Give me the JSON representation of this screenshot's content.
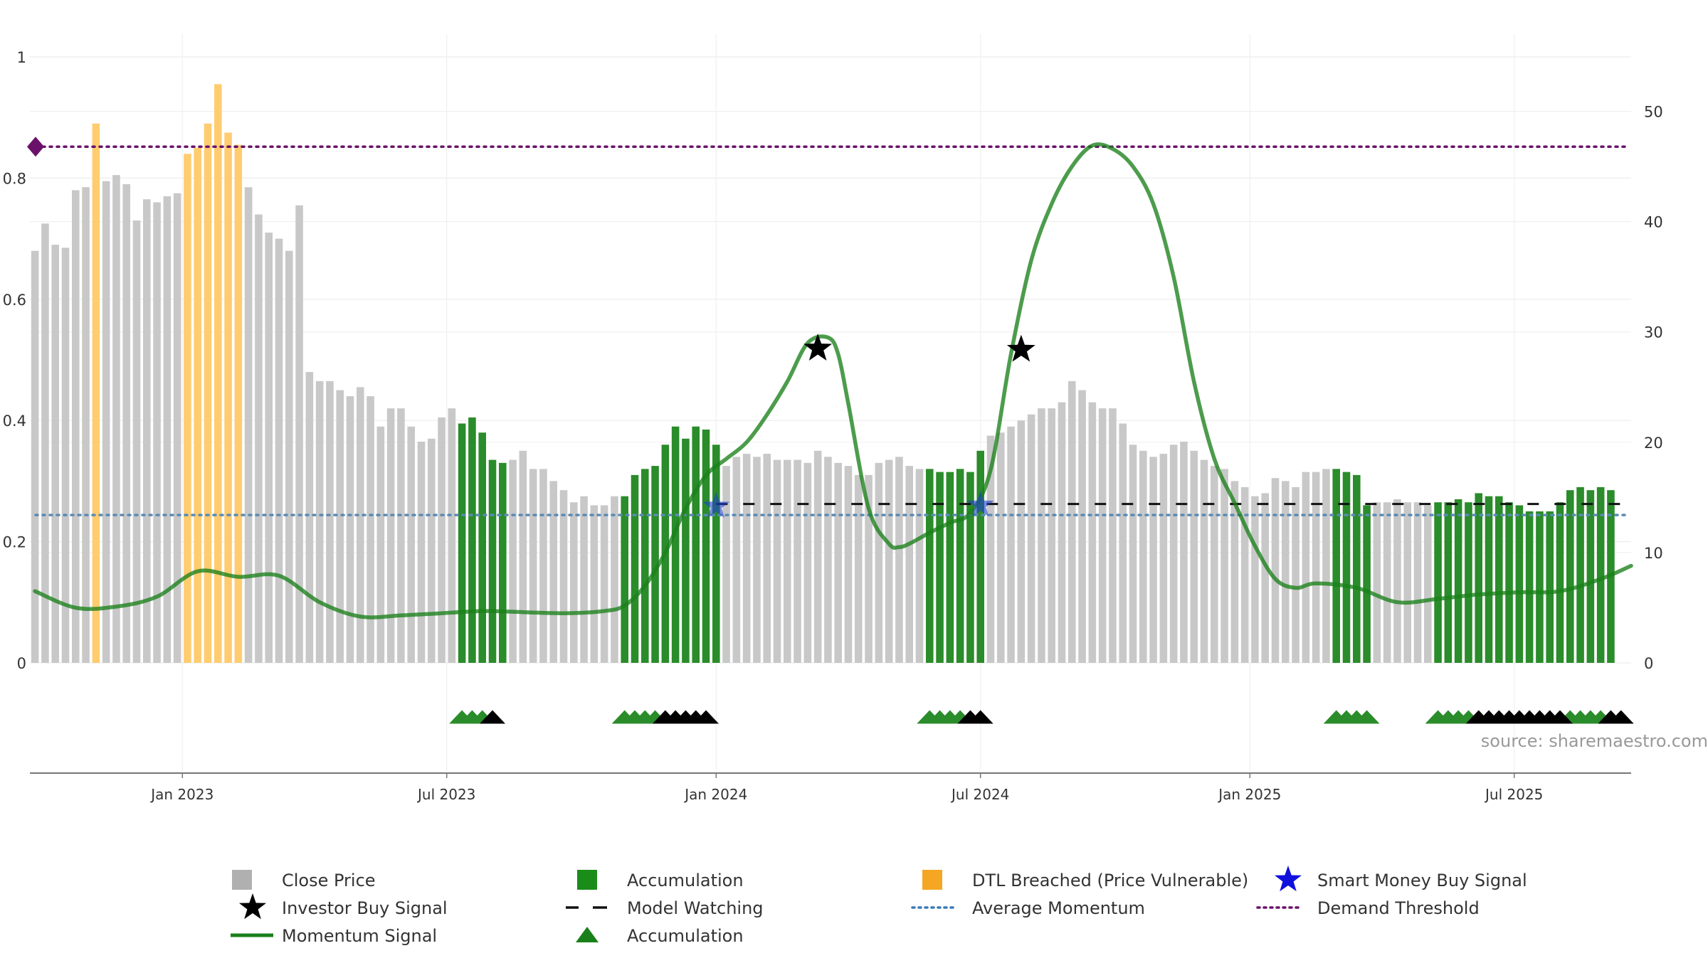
{
  "chart_data": {
    "type": "bar",
    "title": "",
    "xlabel": "",
    "ylabel": "",
    "source": "source: sharemaestro.com",
    "left_axis": {
      "ylim": [
        0,
        1
      ],
      "ticks": [
        "0",
        "0.2",
        "0.4",
        "0.6",
        "0.8",
        "1"
      ]
    },
    "right_axis": {
      "ylim": [
        0,
        57
      ],
      "ticks": [
        "0",
        "10",
        "20",
        "30",
        "40",
        "50"
      ]
    },
    "x_ticks": [
      "Jan 2023",
      "Jul 2023",
      "Jan 2024",
      "Jul 2024",
      "Jan 2025",
      "Jul 2025"
    ],
    "x_tick_weeks": [
      14.5,
      40.5,
      67,
      93,
      119.5,
      145.5
    ],
    "week_range": [
      -0.5,
      157
    ],
    "grid": true,
    "legend_position": "bottom",
    "colors": {
      "close": "#c8c8c8",
      "accumulation": "#2a8c2a",
      "dtl": "#ffcc70",
      "momentum": "#1a801a",
      "model_watching": "#111111",
      "average_momentum": "#5a8bb4",
      "demand_threshold": "#6a126a",
      "smart_money": "#1f3fcf",
      "investor": "#000000"
    },
    "close_price": [
      0.68,
      0.725,
      0.69,
      0.685,
      0.78,
      0.785,
      0.89,
      0.795,
      0.805,
      0.79,
      0.73,
      0.765,
      0.76,
      0.77,
      0.775,
      0.84,
      0.85,
      0.89,
      0.955,
      0.875,
      0.855,
      0.785,
      0.74,
      0.71,
      0.7,
      0.68,
      0.755,
      0.48,
      0.465,
      0.465,
      0.45,
      0.44,
      0.455,
      0.44,
      0.39,
      0.42,
      0.42,
      0.39,
      0.365,
      0.37,
      0.405,
      0.42,
      0.395,
      0.405,
      0.38,
      0.335,
      0.33,
      0.335,
      0.35,
      0.32,
      0.32,
      0.3,
      0.285,
      0.265,
      0.275,
      0.26,
      0.26,
      0.275,
      0.275,
      0.31,
      0.32,
      0.325,
      0.36,
      0.39,
      0.37,
      0.39,
      0.385,
      0.36,
      0.325,
      0.34,
      0.345,
      0.34,
      0.345,
      0.335,
      0.335,
      0.335,
      0.33,
      0.35,
      0.34,
      0.33,
      0.325,
      0.31,
      0.31,
      0.33,
      0.335,
      0.34,
      0.325,
      0.32,
      0.32,
      0.315,
      0.315,
      0.32,
      0.315,
      0.35,
      0.375,
      0.38,
      0.39,
      0.4,
      0.41,
      0.42,
      0.42,
      0.43,
      0.465,
      0.45,
      0.43,
      0.42,
      0.42,
      0.395,
      0.36,
      0.35,
      0.34,
      0.345,
      0.36,
      0.365,
      0.35,
      0.335,
      0.325,
      0.32,
      0.3,
      0.29,
      0.275,
      0.28,
      0.305,
      0.3,
      0.29,
      0.315,
      0.315,
      0.32,
      0.32,
      0.315,
      0.31,
      0.26,
      0.265,
      0.265,
      0.27,
      0.265,
      0.265,
      0.26,
      0.265,
      0.265,
      0.27,
      0.265,
      0.28,
      0.275,
      0.275,
      0.265,
      0.26,
      0.25,
      0.25,
      0.25,
      0.265,
      0.285,
      0.29,
      0.285,
      0.29,
      0.285
    ],
    "accumulation_weeks": [
      42,
      43,
      44,
      45,
      46,
      58,
      59,
      60,
      61,
      62,
      63,
      64,
      65,
      66,
      67,
      88,
      89,
      90,
      91,
      92,
      93,
      128,
      129,
      130,
      131,
      138,
      139,
      140,
      141,
      142,
      143,
      144,
      145,
      146,
      147,
      148,
      149,
      150,
      151,
      152,
      153,
      154,
      155,
      156
    ],
    "dtl_weeks": [
      6,
      15,
      16,
      17,
      18,
      19,
      20
    ],
    "momentum_signal_weeks": [
      0,
      4,
      8,
      12,
      16,
      20,
      24,
      28,
      32,
      36,
      40,
      44,
      48,
      52,
      56,
      58,
      60,
      62,
      64,
      66,
      68,
      70,
      72,
      74,
      76,
      78,
      79,
      80,
      82,
      84,
      85,
      86,
      88,
      90,
      92,
      94,
      96,
      98,
      100,
      102,
      104,
      106,
      108,
      110,
      112,
      114,
      116,
      118,
      120,
      122,
      124,
      126,
      130,
      134,
      138,
      142,
      146,
      150,
      154,
      157
    ],
    "momentum_signal": [
      6.5,
      5.0,
      5.1,
      6.0,
      8.3,
      7.8,
      7.9,
      5.5,
      4.2,
      4.3,
      4.5,
      4.7,
      4.6,
      4.5,
      4.7,
      5.2,
      7.0,
      10.0,
      14.0,
      17.0,
      18.5,
      20.0,
      22.5,
      25.5,
      29.0,
      29.5,
      28.0,
      23.5,
      14.0,
      10.8,
      10.5,
      10.8,
      11.8,
      12.7,
      13.6,
      17.5,
      28.0,
      36.5,
      41.6,
      45.0,
      46.9,
      46.6,
      45.0,
      41.6,
      35.0,
      25.5,
      18.5,
      14.5,
      10.6,
      7.6,
      6.8,
      7.2,
      6.8,
      5.5,
      5.8,
      6.2,
      6.4,
      6.5,
      7.6,
      8.8
    ],
    "average_momentum": 13.4,
    "demand_threshold": 46.8,
    "model_watching_weeks": [
      67,
      157
    ],
    "model_watching_level": 14.4,
    "investor_buy_signals": [
      {
        "week": 77,
        "value": 28.5
      },
      {
        "week": 97,
        "value": 28.4
      }
    ],
    "smart_money_signals": [
      {
        "week": 67,
        "value": 14.2
      },
      {
        "week": 93,
        "value": 14.3
      }
    ],
    "accumulation_triangle_weeks": [
      42,
      43,
      44,
      58,
      59,
      60,
      61,
      88,
      89,
      90,
      91,
      128,
      129,
      130,
      131,
      138,
      139,
      140,
      141,
      151,
      152,
      153,
      154
    ],
    "investor_triangle_weeks": [
      45,
      62,
      63,
      64,
      65,
      66,
      92,
      93,
      142,
      143,
      144,
      145,
      146,
      147,
      148,
      149,
      150,
      155,
      156
    ],
    "legend": [
      {
        "label": "Close Price",
        "marker": "square",
        "color": "#b0b0b0"
      },
      {
        "label": "Accumulation",
        "marker": "square",
        "color": "#1a8c1a"
      },
      {
        "label": "DTL Breached (Price Vulnerable)",
        "marker": "square",
        "color": "#f5a623"
      },
      {
        "label": "Smart Money Buy Signal",
        "marker": "star",
        "color": "#1010dd"
      },
      {
        "label": "Investor Buy Signal",
        "marker": "star",
        "color": "#000000"
      },
      {
        "label": "Model Watching",
        "marker": "dash",
        "color": "#111111"
      },
      {
        "label": "Average Momentum",
        "marker": "dot",
        "color": "#3a7ab8"
      },
      {
        "label": "Demand Threshold",
        "marker": "dot",
        "color": "#6a126a"
      },
      {
        "label": "Momentum Signal",
        "marker": "line",
        "color": "#1a801a"
      },
      {
        "label": "Accumulation",
        "marker": "triangle",
        "color": "#1a801a"
      }
    ]
  }
}
